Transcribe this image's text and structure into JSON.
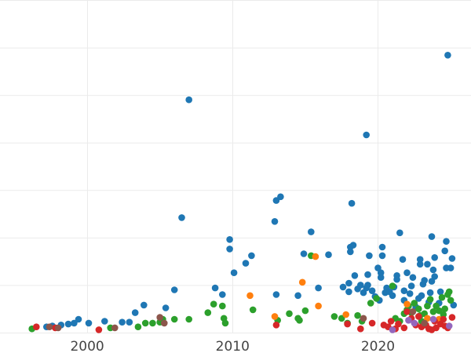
{
  "chart_data": {
    "type": "scatter",
    "title": "",
    "xlabel": "",
    "ylabel": "",
    "xlim": [
      1994.0,
      2026.4
    ],
    "ylim": [
      0,
      35
    ],
    "x_ticks": [
      2000,
      2010,
      2020
    ],
    "x_tick_labels": [
      "2000",
      "2010",
      "2020"
    ],
    "y_gridlines": [
      0,
      5,
      10,
      15,
      20,
      25,
      30,
      35
    ],
    "grid": true,
    "legend": "none",
    "series": [
      {
        "color": "#1f77b4",
        "points": [
          [
            1997.2,
            0.6
          ],
          [
            1997.6,
            0.7
          ],
          [
            1998.2,
            0.8
          ],
          [
            1998.7,
            0.9
          ],
          [
            1999.1,
            1.0
          ],
          [
            1999.4,
            1.4
          ],
          [
            2000.1,
            1.0
          ],
          [
            2001.2,
            1.2
          ],
          [
            2002.4,
            1.1
          ],
          [
            2002.9,
            1.1
          ],
          [
            2003.3,
            2.1
          ],
          [
            2003.9,
            2.9
          ],
          [
            2005.4,
            2.6
          ],
          [
            2006.0,
            4.5
          ],
          [
            2006.5,
            12.1
          ],
          [
            2007.0,
            24.5
          ],
          [
            2008.8,
            4.7
          ],
          [
            2009.3,
            4.0
          ],
          [
            2009.8,
            9.8
          ],
          [
            2009.8,
            8.8
          ],
          [
            2010.1,
            6.3
          ],
          [
            2010.9,
            7.3
          ],
          [
            2011.3,
            8.1
          ],
          [
            2012.9,
            11.7
          ],
          [
            2013.0,
            13.9
          ],
          [
            2013.3,
            14.3
          ],
          [
            2013.0,
            4.0
          ],
          [
            2014.5,
            3.9
          ],
          [
            2014.9,
            8.3
          ],
          [
            2015.4,
            10.6
          ],
          [
            2015.9,
            4.7
          ],
          [
            2016.6,
            8.2
          ],
          [
            2017.6,
            4.8
          ],
          [
            2018.0,
            5.2
          ],
          [
            2018.0,
            4.3
          ],
          [
            2018.1,
            8.5
          ],
          [
            2018.1,
            9.0
          ],
          [
            2018.3,
            9.2
          ],
          [
            2018.2,
            13.6
          ],
          [
            2018.4,
            6.0
          ],
          [
            2018.6,
            4.6
          ],
          [
            2018.8,
            5.0
          ],
          [
            2019.0,
            4.2
          ],
          [
            2019.2,
            4.7
          ],
          [
            2019.3,
            5.0
          ],
          [
            2019.3,
            6.1
          ],
          [
            2019.4,
            8.1
          ],
          [
            2019.2,
            20.8
          ],
          [
            2019.6,
            4.4
          ],
          [
            2019.8,
            3.8
          ],
          [
            2020.1,
            3.4
          ],
          [
            2020.2,
            5.8
          ],
          [
            2020.2,
            6.3
          ],
          [
            2020.3,
            8.1
          ],
          [
            2020.3,
            9.0
          ],
          [
            2020.5,
            4.2
          ],
          [
            2020.6,
            4.7
          ],
          [
            2020.8,
            4.3
          ],
          [
            2021.0,
            3.9
          ],
          [
            2021.1,
            4.8
          ],
          [
            2021.3,
            5.6
          ],
          [
            2021.3,
            6.0
          ],
          [
            2021.5,
            10.5
          ],
          [
            2021.7,
            7.7
          ],
          [
            2021.8,
            4.4
          ],
          [
            2021.8,
            3.4
          ],
          [
            2022.0,
            6.3
          ],
          [
            2022.2,
            4.1
          ],
          [
            2022.3,
            4.9
          ],
          [
            2022.4,
            5.8
          ],
          [
            2022.6,
            2.7
          ],
          [
            2022.8,
            3.6
          ],
          [
            2022.9,
            7.7
          ],
          [
            2022.9,
            7.2
          ],
          [
            2023.1,
            5.1
          ],
          [
            2023.2,
            5.5
          ],
          [
            2023.4,
            7.2
          ],
          [
            2023.5,
            3.2
          ],
          [
            2023.6,
            4.2
          ],
          [
            2023.7,
            5.4
          ],
          [
            2023.8,
            6.6
          ],
          [
            2023.9,
            5.9
          ],
          [
            2023.7,
            10.1
          ],
          [
            2023.9,
            7.9
          ],
          [
            2024.2,
            3.1
          ],
          [
            2024.3,
            4.3
          ],
          [
            2024.6,
            8.6
          ],
          [
            2024.7,
            6.8
          ],
          [
            2024.7,
            9.6
          ],
          [
            2024.8,
            29.2
          ],
          [
            2025.0,
            6.8
          ],
          [
            2025.1,
            7.8
          ],
          [
            2025.2,
            2.9
          ],
          [
            2023.0,
            3.9
          ],
          [
            2020.0,
            6.8
          ]
        ]
      },
      {
        "color": "#2ca02c",
        "points": [
          [
            1996.2,
            0.4
          ],
          [
            2001.6,
            0.5
          ],
          [
            2003.5,
            0.6
          ],
          [
            2004.0,
            1.0
          ],
          [
            2004.5,
            1.0
          ],
          [
            2005.0,
            1.1
          ],
          [
            2005.2,
            1.4
          ],
          [
            2006.0,
            1.4
          ],
          [
            2007.0,
            1.4
          ],
          [
            2008.3,
            2.1
          ],
          [
            2008.7,
            3.0
          ],
          [
            2009.3,
            2.8
          ],
          [
            2009.4,
            1.5
          ],
          [
            2009.5,
            1.0
          ],
          [
            2011.4,
            2.4
          ],
          [
            2013.1,
            1.3
          ],
          [
            2013.9,
            2.0
          ],
          [
            2014.5,
            1.5
          ],
          [
            2014.6,
            1.3
          ],
          [
            2015.0,
            2.3
          ],
          [
            2015.4,
            8.1
          ],
          [
            2017.0,
            1.7
          ],
          [
            2017.5,
            1.5
          ],
          [
            2017.9,
            1.0
          ],
          [
            2018.6,
            1.8
          ],
          [
            2018.9,
            1.2
          ],
          [
            2019.5,
            3.1
          ],
          [
            2019.9,
            3.6
          ],
          [
            2021.0,
            4.9
          ],
          [
            2021.2,
            1.5
          ],
          [
            2021.5,
            1.2
          ],
          [
            2021.8,
            2.0
          ],
          [
            2022.0,
            2.4
          ],
          [
            2022.1,
            2.8
          ],
          [
            2022.3,
            2.1
          ],
          [
            2022.5,
            3.1
          ],
          [
            2022.8,
            2.5
          ],
          [
            2022.9,
            1.8
          ],
          [
            2023.0,
            1.2
          ],
          [
            2023.2,
            2.0
          ],
          [
            2023.4,
            2.8
          ],
          [
            2023.6,
            3.5
          ],
          [
            2023.8,
            2.2
          ],
          [
            2024.0,
            2.8
          ],
          [
            2024.2,
            2.3
          ],
          [
            2024.4,
            3.7
          ],
          [
            2024.5,
            1.9
          ],
          [
            2024.6,
            2.5
          ],
          [
            2024.8,
            4.0
          ],
          [
            2024.9,
            4.3
          ],
          [
            2025.0,
            3.4
          ]
        ]
      },
      {
        "color": "#ff7f0e",
        "points": [
          [
            2011.2,
            3.9
          ],
          [
            2012.9,
            1.7
          ],
          [
            2014.8,
            5.3
          ],
          [
            2015.7,
            8.0
          ],
          [
            2015.9,
            2.8
          ],
          [
            2017.8,
            1.9
          ],
          [
            2022.0,
            3.0
          ],
          [
            2023.4,
            1.5
          ],
          [
            2024.2,
            1.4
          ]
        ]
      },
      {
        "color": "#d62728",
        "points": [
          [
            1996.5,
            0.6
          ],
          [
            1997.8,
            0.5
          ],
          [
            2000.8,
            0.3
          ],
          [
            2013.0,
            0.8
          ],
          [
            2017.9,
            0.9
          ],
          [
            2018.8,
            0.4
          ],
          [
            2019.6,
            1.0
          ],
          [
            2020.4,
            0.8
          ],
          [
            2020.7,
            0.6
          ],
          [
            2020.9,
            1.2
          ],
          [
            2021.2,
            0.4
          ],
          [
            2021.4,
            0.9
          ],
          [
            2021.8,
            0.5
          ],
          [
            2022.0,
            2.2
          ],
          [
            2022.3,
            1.5
          ],
          [
            2022.6,
            0.8
          ],
          [
            2022.8,
            1.7
          ],
          [
            2023.0,
            0.6
          ],
          [
            2023.3,
            0.8
          ],
          [
            2023.5,
            0.4
          ],
          [
            2023.7,
            0.3
          ],
          [
            2023.9,
            1.2
          ],
          [
            2024.0,
            0.5
          ],
          [
            2024.3,
            0.9
          ],
          [
            2024.5,
            1.4
          ],
          [
            2024.6,
            0.7
          ],
          [
            2024.8,
            0.5
          ],
          [
            2025.1,
            1.6
          ]
        ]
      },
      {
        "color": "#9467bd",
        "points": [
          [
            2021.0,
            0.3
          ],
          [
            2022.1,
            1.3
          ],
          [
            2022.5,
            1.0
          ],
          [
            2023.8,
            1.4
          ],
          [
            2024.9,
            0.7
          ]
        ]
      },
      {
        "color": "#8c564b",
        "points": [
          [
            1997.4,
            0.6
          ],
          [
            1998.0,
            0.5
          ],
          [
            2001.9,
            0.5
          ],
          [
            2005.0,
            1.6
          ],
          [
            2005.3,
            1.0
          ],
          [
            2019.0,
            1.5
          ],
          [
            2022.4,
            2.2
          ],
          [
            2023.2,
            1.0
          ]
        ]
      }
    ]
  }
}
